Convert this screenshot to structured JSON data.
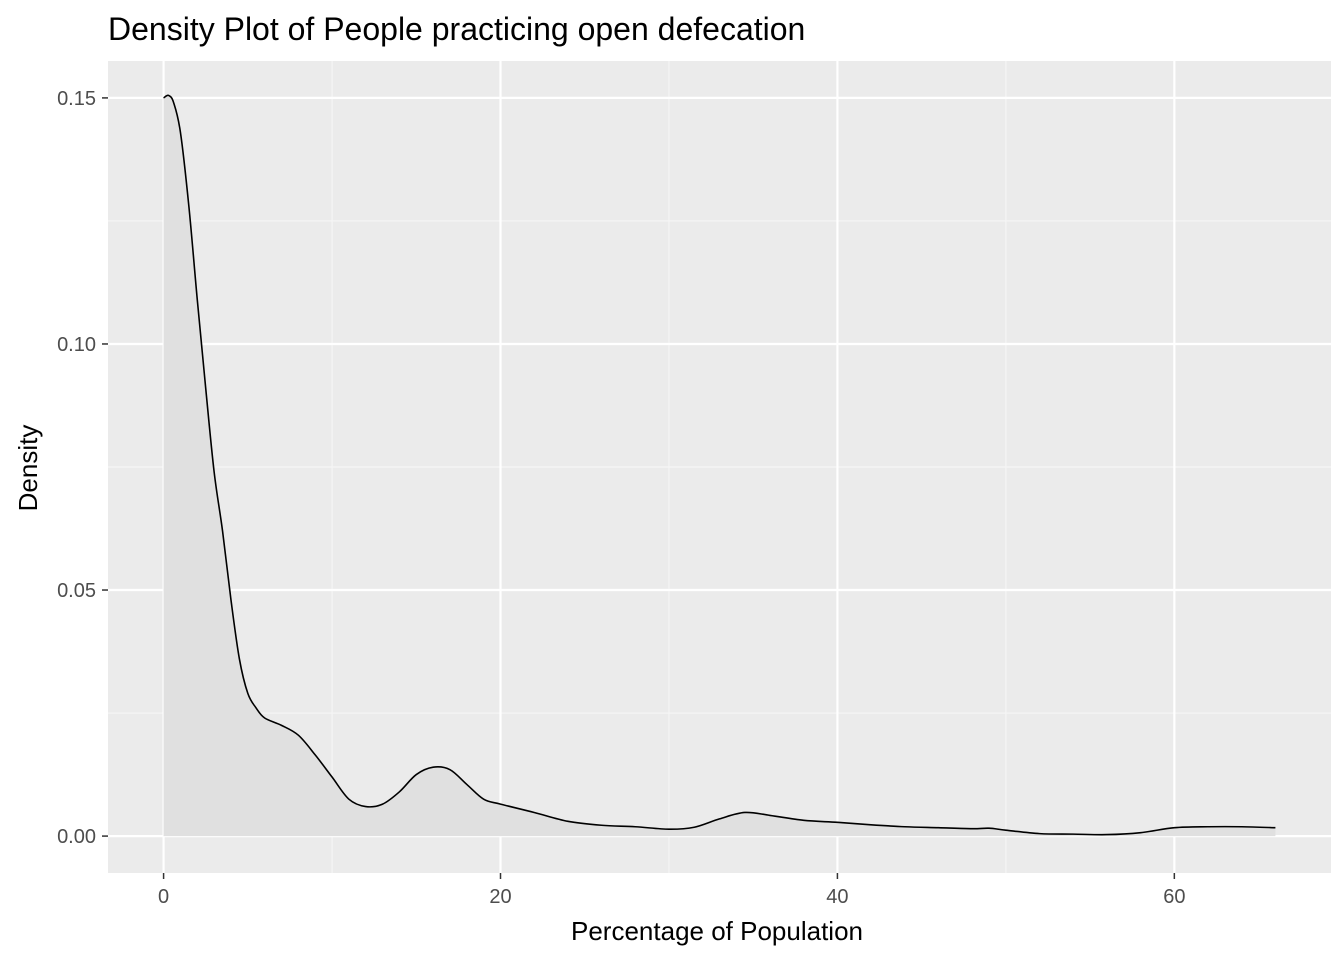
{
  "chart_data": {
    "type": "area",
    "title": "Density Plot of People practicing open defecation",
    "xlabel": "Percentage of Population",
    "ylabel": "Density",
    "xlim": [
      -3.3,
      69.3
    ],
    "ylim": [
      -0.0075,
      0.1575
    ],
    "x_ticks": [
      0,
      20,
      40,
      60
    ],
    "x_tick_labels": [
      "0",
      "20",
      "40",
      "60"
    ],
    "y_ticks": [
      0.0,
      0.05,
      0.1,
      0.15
    ],
    "y_tick_labels": [
      "0.00",
      "0.05",
      "0.10",
      "0.15"
    ],
    "x_minor": [
      10,
      30,
      50
    ],
    "y_minor": [
      0.025,
      0.075,
      0.125
    ],
    "grid": true,
    "legend": "none",
    "colors": {
      "panel": "#EBEBEB",
      "grid_major": "#FFFFFF",
      "grid_minor": "#F5F5F5",
      "fill": "#E0E0E0",
      "line": "#000000",
      "tick_mark": "#333333"
    },
    "series": [
      {
        "x": [
          0,
          0.3,
          0.6,
          1.0,
          1.5,
          2.0,
          2.5,
          3.0,
          3.5,
          4.0,
          4.5,
          5.0,
          5.5,
          6.0,
          7.0,
          8.0,
          9.0,
          10.0,
          11.0,
          12.0,
          13.0,
          14.0,
          15.0,
          16.0,
          17.0,
          18.0,
          19.0,
          20.0,
          22.0,
          24.0,
          26.0,
          28.0,
          30.0,
          31.5,
          33.0,
          34.5,
          36.0,
          38.0,
          40.0,
          42.0,
          44.0,
          46.0,
          48.0,
          49.0,
          50.0,
          52.0,
          54.0,
          56.0,
          58.0,
          60.0,
          62.0,
          64.0,
          66.0
        ],
        "y": [
          0.15,
          0.1505,
          0.149,
          0.143,
          0.128,
          0.109,
          0.091,
          0.074,
          0.062,
          0.048,
          0.036,
          0.029,
          0.026,
          0.024,
          0.0225,
          0.0205,
          0.0165,
          0.012,
          0.0075,
          0.006,
          0.0065,
          0.009,
          0.0125,
          0.014,
          0.0135,
          0.0105,
          0.0075,
          0.0065,
          0.0048,
          0.003,
          0.0022,
          0.0019,
          0.0014,
          0.0018,
          0.0035,
          0.0048,
          0.0042,
          0.0032,
          0.0028,
          0.0023,
          0.0019,
          0.0017,
          0.0015,
          0.0016,
          0.0012,
          0.0005,
          0.0004,
          0.0003,
          0.0007,
          0.0017,
          0.0019,
          0.0019,
          0.0017
        ]
      }
    ]
  }
}
